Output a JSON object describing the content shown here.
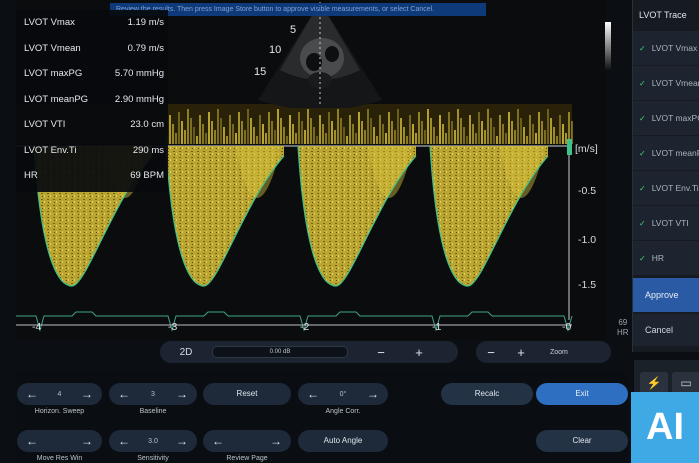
{
  "hint": "Review the results. Then press Image Store button to approve visible measurements, or select Cancel.",
  "measurements": [
    {
      "label": "LVOT Vmax",
      "value": "1.19 m/s"
    },
    {
      "label": "LVOT Vmean",
      "value": "0.79 m/s"
    },
    {
      "label": "LVOT maxPG",
      "value": "5.70 mmHg"
    },
    {
      "label": "LVOT meanPG",
      "value": "2.90 mmHg"
    },
    {
      "label": "LVOT VTI",
      "value": "23.0 cm"
    },
    {
      "label": "LVOT Env.Ti",
      "value": "290 ms"
    },
    {
      "label": "HR",
      "value": "69 BPM"
    }
  ],
  "echo_inset": {
    "depth_labels": [
      "5",
      "10",
      "15"
    ]
  },
  "doppler": {
    "unit": "[m/s]",
    "velocity_ticks": [
      "-0.5",
      "-1.0",
      "-1.5"
    ],
    "time_ticks": [
      "-4",
      "-3",
      "-2",
      "-1",
      "-0"
    ],
    "hr_side": {
      "value": "69",
      "label": "HR"
    },
    "trace_color": "#3ec28a",
    "signal_color": "#d8c23a"
  },
  "right_panel": {
    "title": "LVOT Trace",
    "items": [
      "LVOT Vmax",
      "LVOT Vmean",
      "LVOT maxPG",
      "LVOT meanPG",
      "LVOT Env.Ti",
      "LVOT VTI",
      "HR"
    ],
    "approve": "Approve",
    "cancel": "Cancel"
  },
  "controls": {
    "mode_label": "2D",
    "gain_value": "0.00 dB",
    "zoom_label": "Zoom",
    "horizon_sweep": {
      "value": "4",
      "caption": "Horizon. Sweep"
    },
    "baseline": {
      "value": "3",
      "caption": "Baseline"
    },
    "reset": "Reset",
    "angle_corr": {
      "value": "0°",
      "caption": "Angle Corr."
    },
    "recalc": "Recalc",
    "exit": "Exit",
    "move_res_win": {
      "caption": "Move Res Win"
    },
    "sensitivity": {
      "value": "3.0",
      "caption": "Sensitivity"
    },
    "review_page": {
      "caption": "Review Page"
    },
    "auto_angle": "Auto Angle",
    "clear": "Clear"
  },
  "badge": "AI"
}
